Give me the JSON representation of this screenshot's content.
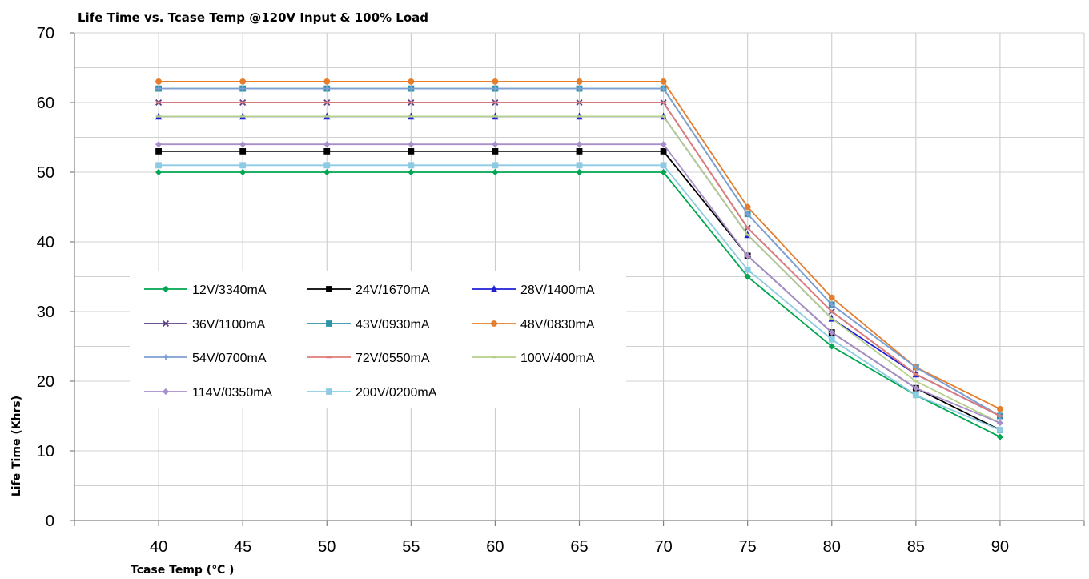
{
  "chart_data": {
    "type": "line",
    "title": "Life Time vs. Tcase Temp @120V Input & 100% Load",
    "xlabel": "Tcase Temp (℃ )",
    "ylabel": "Life Time (Khrs)",
    "x": [
      40,
      45,
      50,
      55,
      60,
      65,
      70,
      75,
      80,
      85,
      90
    ],
    "xlim": [
      35,
      95
    ],
    "ylim": [
      0,
      70
    ],
    "yticks": [
      0,
      10,
      20,
      30,
      40,
      50,
      60,
      70
    ],
    "grid": true,
    "legend_position": "center-left",
    "series": [
      {
        "name": "12V/3340mA",
        "color": "#00a651",
        "marker": "diamond",
        "values": [
          50,
          50,
          50,
          50,
          50,
          50,
          50,
          35,
          25,
          18,
          12
        ]
      },
      {
        "name": "24V/1670mA",
        "color": "#000000",
        "marker": "square",
        "values": [
          53,
          53,
          53,
          53,
          53,
          53,
          53,
          38,
          27,
          19,
          13
        ]
      },
      {
        "name": "28V/1400mA",
        "color": "#1f1fd6",
        "marker": "triangle",
        "values": [
          58,
          58,
          58,
          58,
          58,
          58,
          58,
          41,
          29,
          21,
          15
        ]
      },
      {
        "name": "36V/1100mA",
        "color": "#5b3d86",
        "marker": "x",
        "values": [
          60,
          60,
          60,
          60,
          60,
          60,
          60,
          42,
          30,
          21,
          15
        ]
      },
      {
        "name": "43V/0930mA",
        "color": "#2e93a8",
        "marker": "square",
        "values": [
          62,
          62,
          62,
          62,
          62,
          62,
          62,
          44,
          31,
          22,
          15
        ]
      },
      {
        "name": "48V/0830mA",
        "color": "#e47d2c",
        "marker": "circle",
        "values": [
          63,
          63,
          63,
          63,
          63,
          63,
          63,
          45,
          32,
          22,
          16
        ]
      },
      {
        "name": "54V/0700mA",
        "color": "#7f9fd3",
        "marker": "plus",
        "values": [
          62,
          62,
          62,
          62,
          62,
          62,
          62,
          44,
          31,
          22,
          15
        ]
      },
      {
        "name": "72V/0550mA",
        "color": "#e07c78",
        "marker": "dash",
        "values": [
          60,
          60,
          60,
          60,
          60,
          60,
          60,
          42,
          30,
          21,
          15
        ]
      },
      {
        "name": "100V/400mA",
        "color": "#b5d08a",
        "marker": "dash",
        "values": [
          58,
          58,
          58,
          58,
          58,
          58,
          58,
          41,
          29,
          20,
          14
        ]
      },
      {
        "name": "114V/0350mA",
        "color": "#a88fcb",
        "marker": "diamond",
        "values": [
          54,
          54,
          54,
          54,
          54,
          54,
          54,
          38,
          27,
          19,
          14
        ]
      },
      {
        "name": "200V/0200mA",
        "color": "#8ccbe3",
        "marker": "square",
        "values": [
          51,
          51,
          51,
          51,
          51,
          51,
          51,
          36,
          26,
          18,
          13
        ]
      }
    ]
  }
}
